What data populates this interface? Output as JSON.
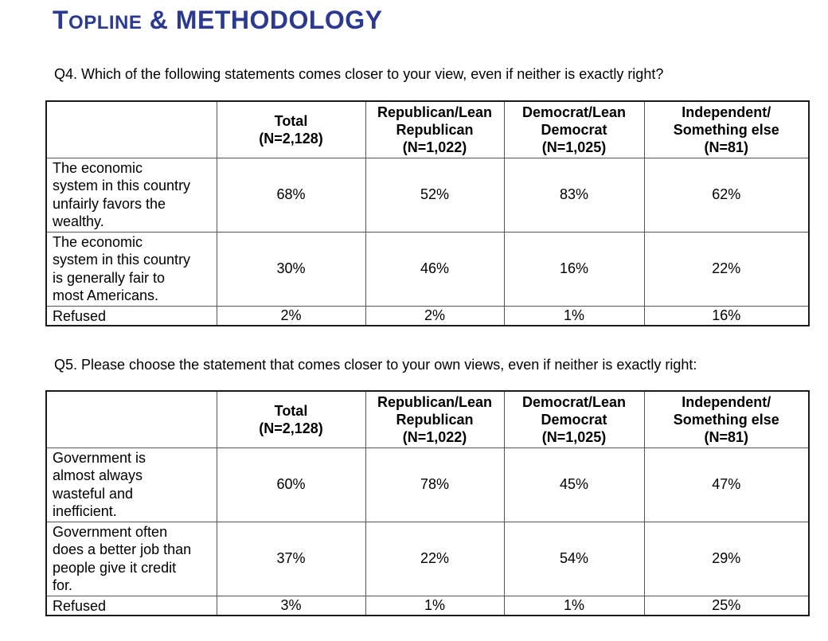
{
  "title": {
    "lead": "T",
    "small": "OPLINE",
    "rest": " & METHODOLOGY"
  },
  "accent_color": "#2b3990",
  "questions": [
    {
      "id": "Q4",
      "text": "Q4. Which of the following statements comes closer to your view, even if neither is exactly right?",
      "table": {
        "columns": [
          "",
          "Total\n(N=2,128)",
          "Republican/Lean\nRepublican\n(N=1,022)",
          "Democrat/Lean\nDemocrat\n(N=1,025)",
          "Independent/\nSomething else\n(N=81)"
        ],
        "rows": [
          {
            "label": "The economic\nsystem in this country\nunfairly favors the\nwealthy.",
            "values": [
              "68%",
              "52%",
              "83%",
              "62%"
            ]
          },
          {
            "label": "The economic\nsystem in this country\nis generally fair to\nmost Americans.",
            "values": [
              "30%",
              "46%",
              "16%",
              "22%"
            ]
          },
          {
            "label": "Refused",
            "values": [
              "2%",
              "2%",
              "1%",
              "16%"
            ]
          }
        ]
      }
    },
    {
      "id": "Q5",
      "text": "Q5. Please choose the statement that comes closer to your own views, even if neither is exactly right:",
      "table": {
        "columns": [
          "",
          "Total\n(N=2,128)",
          "Republican/Lean\nRepublican\n(N=1,022)",
          "Democrat/Lean\nDemocrat\n(N=1,025)",
          "Independent/\nSomething else\n(N=81)"
        ],
        "rows": [
          {
            "label": "Government is\nalmost always\nwasteful and\ninefficient.",
            "values": [
              "60%",
              "78%",
              "45%",
              "47%"
            ]
          },
          {
            "label": "Government often\ndoes a better job than\npeople give it credit\nfor.",
            "values": [
              "37%",
              "22%",
              "54%",
              "29%"
            ]
          },
          {
            "label": "Refused",
            "values": [
              "3%",
              "1%",
              "1%",
              "25%"
            ]
          }
        ]
      }
    }
  ]
}
